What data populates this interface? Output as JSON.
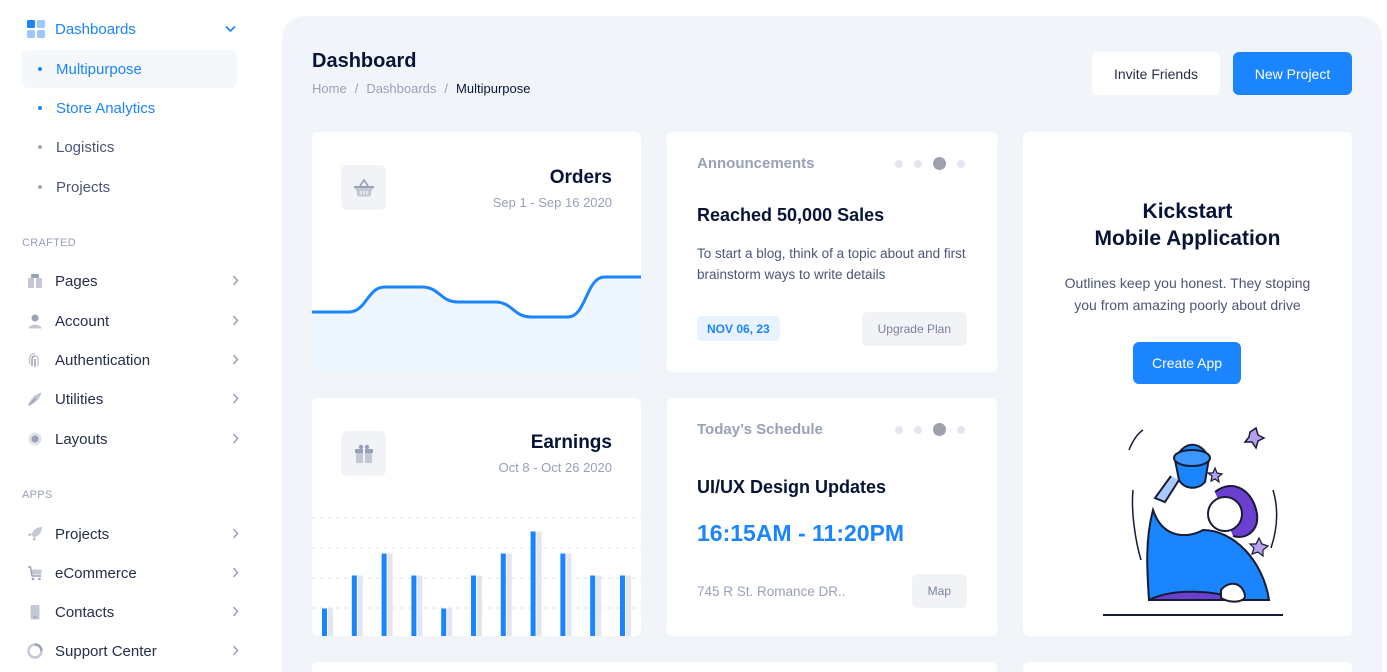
{
  "sidebar": {
    "top": {
      "label": "Dashboards"
    },
    "sub_items": [
      {
        "label": "Multipurpose"
      },
      {
        "label": "Store Analytics"
      },
      {
        "label": "Logistics"
      },
      {
        "label": "Projects"
      }
    ],
    "sections": [
      {
        "title": "CRAFTED",
        "items": [
          {
            "label": "Pages",
            "icon": "pages-icon"
          },
          {
            "label": "Account",
            "icon": "user-icon"
          },
          {
            "label": "Authentication",
            "icon": "fingerprint-icon"
          },
          {
            "label": "Utilities",
            "icon": "utilities-icon"
          },
          {
            "label": "Layouts",
            "icon": "gear-icon"
          }
        ]
      },
      {
        "title": "APPS",
        "items": [
          {
            "label": "Projects",
            "icon": "rocket-icon"
          },
          {
            "label": "eCommerce",
            "icon": "cart-icon"
          },
          {
            "label": "Contacts",
            "icon": "phone-icon"
          },
          {
            "label": "Support Center",
            "icon": "support-icon"
          }
        ]
      }
    ]
  },
  "header": {
    "title": "Dashboard",
    "breadcrumb": [
      "Home",
      "Dashboards",
      "Multipurpose"
    ],
    "invite_label": "Invite Friends",
    "new_project_label": "New Project"
  },
  "orders": {
    "title": "Orders",
    "date_range": "Sep 1 - Sep 16 2020",
    "icon": "basket-icon",
    "chart_data": {
      "type": "area",
      "values": [
        30,
        30,
        55,
        55,
        40,
        40,
        25,
        25,
        65,
        65
      ]
    }
  },
  "earnings": {
    "title": "Earnings",
    "date_range": "Oct 8 - Oct 26 2020",
    "icon": "gift-icon",
    "chart_data": {
      "type": "bar",
      "series": [
        {
          "values": [
            25,
            55,
            75,
            55,
            25,
            55,
            75,
            95,
            75,
            55,
            55
          ]
        },
        {
          "values": [
            25,
            55,
            75,
            55,
            25,
            55,
            75,
            95,
            75,
            55,
            55
          ]
        }
      ],
      "colors": [
        "#1b84ff",
        "#e4e6ef"
      ]
    }
  },
  "announcements": {
    "header": "Announcements",
    "title": "Reached 50,000 Sales",
    "text": "To start a blog, think of a topic about and first brainstorm ways to write details",
    "badge": "NOV 06, 23",
    "button": "Upgrade Plan"
  },
  "schedule": {
    "header": "Today’s Schedule",
    "title": "UI/UX Design Updates",
    "time": "16:15AM - 11:20PM",
    "address": "745 R St. Romance DR..",
    "button": "Map"
  },
  "kickstart": {
    "title_line1": "Kickstart",
    "title_line2": "Mobile Application",
    "text": "Outlines keep you honest. They stoping you from amazing poorly about drive",
    "button": "Create App"
  },
  "colors": {
    "primary": "#1b84ff",
    "muted": "#99a1b7",
    "bg": "#f1f5f9"
  }
}
